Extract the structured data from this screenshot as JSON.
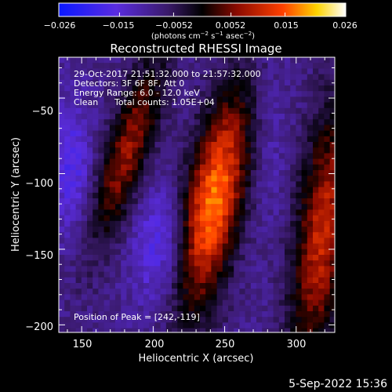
{
  "colorbar": {
    "ticks": [
      "−0.026",
      "−0.015",
      "−0.0052",
      "0.0052",
      "0.015",
      "0.026"
    ],
    "tick_values": [
      -0.026,
      -0.015,
      -0.0052,
      0.0052,
      0.015,
      0.026
    ],
    "range": [
      -0.026,
      0.026
    ],
    "units_main": "(photons cm",
    "units_exp1": "−2",
    "units_mid": " s",
    "units_exp2": "−1",
    "units_mid2": " asec",
    "units_exp3": "−2",
    "units_end": ")"
  },
  "chart_data": {
    "type": "heatmap",
    "title": "Reconstructed RHESSI Image",
    "xlabel": "Heliocentric X (arcsec)",
    "ylabel": "Heliocentric Y (arcsec)",
    "xlim": [
      134,
      327
    ],
    "ylim": [
      -205,
      -23
    ],
    "xticks": [
      150,
      200,
      250,
      300
    ],
    "yticks": [
      -50,
      -100,
      -150,
      -200
    ],
    "ytick_labels": [
      "−50",
      "−100",
      "−150",
      "−200"
    ],
    "colormap": "blue-purple-red-yellow-white (RHESSI standard)",
    "value_range": [
      -0.026,
      0.026
    ],
    "peak": [
      242,
      -119
    ],
    "sources": [
      {
        "x": 182,
        "y": -85,
        "amplitude": 0.016
      },
      {
        "x": 242,
        "y": -119,
        "amplitude": 0.026
      },
      {
        "x": 318,
        "y": -140,
        "amplitude": 0.019
      }
    ]
  },
  "info": {
    "line1": "29-Oct-2017 21:51:32.000 to 21:57:32.000",
    "line2": "Detectors: 3F 6F 8F, Att 0",
    "line3": "Energy Range: 6.0 - 12.0 keV",
    "line4a": "Clean",
    "line4b": "Total counts: 1.05E+04",
    "peak_text": "Position of Peak = [242,-119]"
  },
  "timestamp": "5-Sep-2022 15:36"
}
